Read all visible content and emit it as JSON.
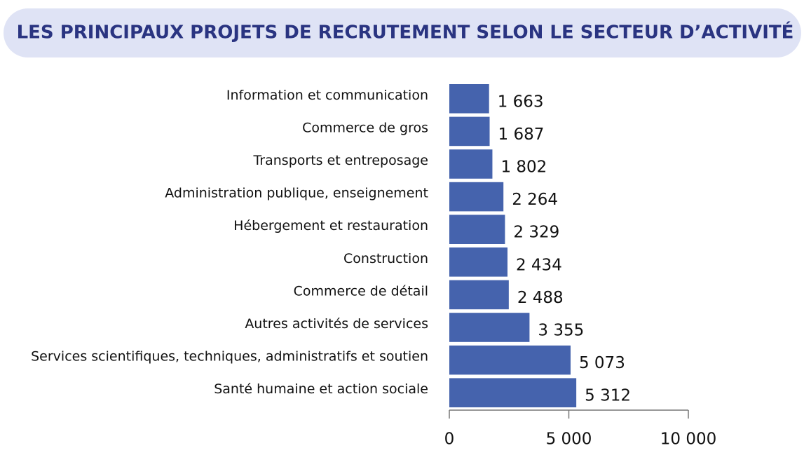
{
  "chart_data": {
    "type": "bar",
    "orientation": "horizontal",
    "title": "LES PRINCIPAUX PROJETS DE RECRUTEMENT SELON LE SECTEUR D’ACTIVITÉ",
    "categories": [
      "Information et communication",
      "Commerce de gros",
      "Transports et entreposage",
      "Administration publique, enseignement",
      "Hébergement et restauration",
      "Construction",
      "Commerce de détail",
      "Autres activités de services",
      "Services scientifiques, techniques, administratifs et soutien",
      "Santé humaine et action sociale"
    ],
    "values": [
      1663,
      1687,
      1802,
      2264,
      2329,
      2434,
      2488,
      3355,
      5073,
      5312
    ],
    "value_labels": [
      "1 663",
      "1 687",
      "1 802",
      "2 264",
      "2 329",
      "2 434",
      "2 488",
      "3 355",
      "5 073",
      "5 312"
    ],
    "color": "#4563ad",
    "xlim": [
      0,
      10000
    ],
    "xticks": [
      0,
      {
        "value": 5000,
        "label": "5 000"
      },
      {
        "value": 10000,
        "label": "10 000"
      }
    ]
  }
}
